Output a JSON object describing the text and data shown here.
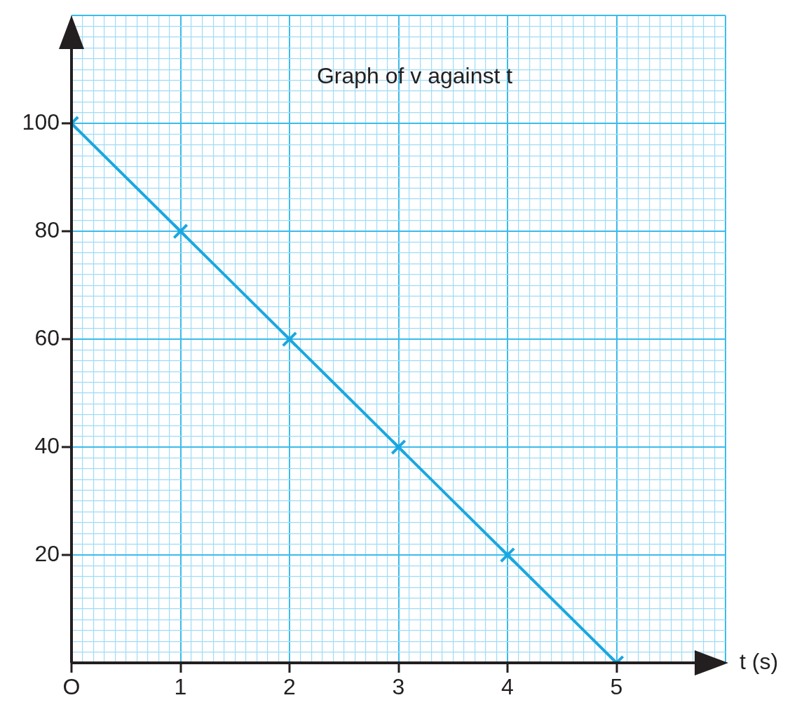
{
  "chart_data": {
    "type": "line",
    "title": "Graph of v against t",
    "xlabel": "t (s)",
    "x": [
      0,
      1,
      2,
      3,
      4,
      5
    ],
    "series": [
      {
        "color": "#1aa7e0",
        "values": [
          100,
          80,
          60,
          40,
          20,
          0
        ]
      }
    ],
    "xlim": [
      0,
      6
    ],
    "xticks": [
      {
        "value": 0,
        "label": "O"
      },
      {
        "value": 0.1,
        "label": null
      },
      {
        "value": 0.2,
        "label": null
      },
      {
        "value": 0.3,
        "label": null
      },
      {
        "value": 0.4,
        "label": null
      },
      {
        "value": 0.5,
        "label": null
      },
      {
        "value": 0.6,
        "label": null
      },
      {
        "value": 0.7,
        "label": null
      },
      {
        "value": 0.8,
        "label": null
      },
      {
        "value": 0.9,
        "label": null
      },
      1,
      {
        "value": 1.1,
        "label": null
      },
      {
        "value": 1.2,
        "label": null
      },
      {
        "value": 1.3,
        "label": null
      },
      {
        "value": 1.4,
        "label": null
      },
      {
        "value": 1.5,
        "label": null
      },
      {
        "value": 1.6,
        "label": null
      },
      {
        "value": 1.7,
        "label": null
      },
      {
        "value": 1.8,
        "label": null
      },
      {
        "value": 1.9,
        "label": null
      },
      2,
      {
        "value": 2.1,
        "label": null
      },
      {
        "value": 2.2,
        "label": null
      },
      {
        "value": 2.3,
        "label": null
      },
      {
        "value": 2.4,
        "label": null
      },
      {
        "value": 2.5,
        "label": null
      },
      {
        "value": 2.6,
        "label": null
      },
      {
        "value": 2.7,
        "label": null
      },
      {
        "value": 2.8,
        "label": null
      },
      {
        "value": 2.9,
        "label": null
      },
      3,
      {
        "value": 3.1,
        "label": null
      },
      {
        "value": 3.2,
        "label": null
      },
      {
        "value": 3.3,
        "label": null
      },
      {
        "value": 3.4,
        "label": null
      },
      {
        "value": 3.5,
        "label": null
      },
      {
        "value": 3.6,
        "label": null
      },
      {
        "value": 3.7,
        "label": null
      },
      {
        "value": 3.8,
        "label": null
      },
      {
        "value": 3.9,
        "label": null
      },
      4,
      {
        "value": 4.1,
        "label": null
      },
      {
        "value": 4.2,
        "label": null
      },
      {
        "value": 4.3,
        "label": null
      },
      {
        "value": 4.4,
        "label": null
      },
      {
        "value": 4.5,
        "label": null
      },
      {
        "value": 4.6,
        "label": null
      },
      {
        "value": 4.7,
        "label": null
      },
      {
        "value": 4.8,
        "label": null
      },
      {
        "value": 4.9,
        "label": null
      },
      5,
      {
        "value": 5.1,
        "label": null
      },
      {
        "value": 5.2,
        "label": null
      },
      {
        "value": 5.3,
        "label": null
      },
      {
        "value": 5.4,
        "label": null
      },
      {
        "value": 5.5,
        "label": null
      },
      {
        "value": 5.6,
        "label": null
      },
      {
        "value": 5.7,
        "label": null
      },
      {
        "value": 5.8,
        "label": null
      },
      {
        "value": 5.9,
        "label": null
      },
      {
        "value": 6,
        "label": null
      }
    ],
    "ylim": [
      0,
      120
    ],
    "yticks": [
      {
        "value": 0,
        "label": null
      },
      {
        "value": 2,
        "label": null
      },
      {
        "value": 4,
        "label": null
      },
      {
        "value": 6,
        "label": null
      },
      {
        "value": 8,
        "label": null
      },
      {
        "value": 10,
        "label": null
      },
      {
        "value": 12,
        "label": null
      },
      {
        "value": 14,
        "label": null
      },
      {
        "value": 16,
        "label": null
      },
      {
        "value": 18,
        "label": null
      },
      20,
      {
        "value": 22,
        "label": null
      },
      {
        "value": 24,
        "label": null
      },
      {
        "value": 26,
        "label": null
      },
      {
        "value": 28,
        "label": null
      },
      {
        "value": 30,
        "label": null
      },
      {
        "value": 32,
        "label": null
      },
      {
        "value": 34,
        "label": null
      },
      {
        "value": 36,
        "label": null
      },
      {
        "value": 38,
        "label": null
      },
      40,
      {
        "value": 42,
        "label": null
      },
      {
        "value": 44,
        "label": null
      },
      {
        "value": 46,
        "label": null
      },
      {
        "value": 48,
        "label": null
      },
      {
        "value": 50,
        "label": null
      },
      {
        "value": 52,
        "label": null
      },
      {
        "value": 54,
        "label": null
      },
      {
        "value": 56,
        "label": null
      },
      {
        "value": 58,
        "label": null
      },
      60,
      {
        "value": 62,
        "label": null
      },
      {
        "value": 64,
        "label": null
      },
      {
        "value": 66,
        "label": null
      },
      {
        "value": 68,
        "label": null
      },
      {
        "value": 70,
        "label": null
      },
      {
        "value": 72,
        "label": null
      },
      {
        "value": 74,
        "label": null
      },
      {
        "value": 76,
        "label": null
      },
      {
        "value": 78,
        "label": null
      },
      80,
      {
        "value": 82,
        "label": null
      },
      {
        "value": 84,
        "label": null
      },
      {
        "value": 86,
        "label": null
      },
      {
        "value": 88,
        "label": null
      },
      {
        "value": 90,
        "label": null
      },
      {
        "value": 92,
        "label": null
      },
      {
        "value": 94,
        "label": null
      },
      {
        "value": 96,
        "label": null
      },
      {
        "value": 98,
        "label": null
      },
      100,
      {
        "value": 102,
        "label": null
      },
      {
        "value": 104,
        "label": null
      },
      {
        "value": 106,
        "label": null
      },
      {
        "value": 108,
        "label": null
      },
      {
        "value": 110,
        "label": null
      },
      {
        "value": 112,
        "label": null
      },
      {
        "value": 114,
        "label": null
      },
      {
        "value": 116,
        "label": null
      },
      {
        "value": 118,
        "label": null
      },
      {
        "value": 120,
        "label": null
      }
    ],
    "grid": true,
    "marker": "cross",
    "line_style": "solid",
    "legend": false
  }
}
